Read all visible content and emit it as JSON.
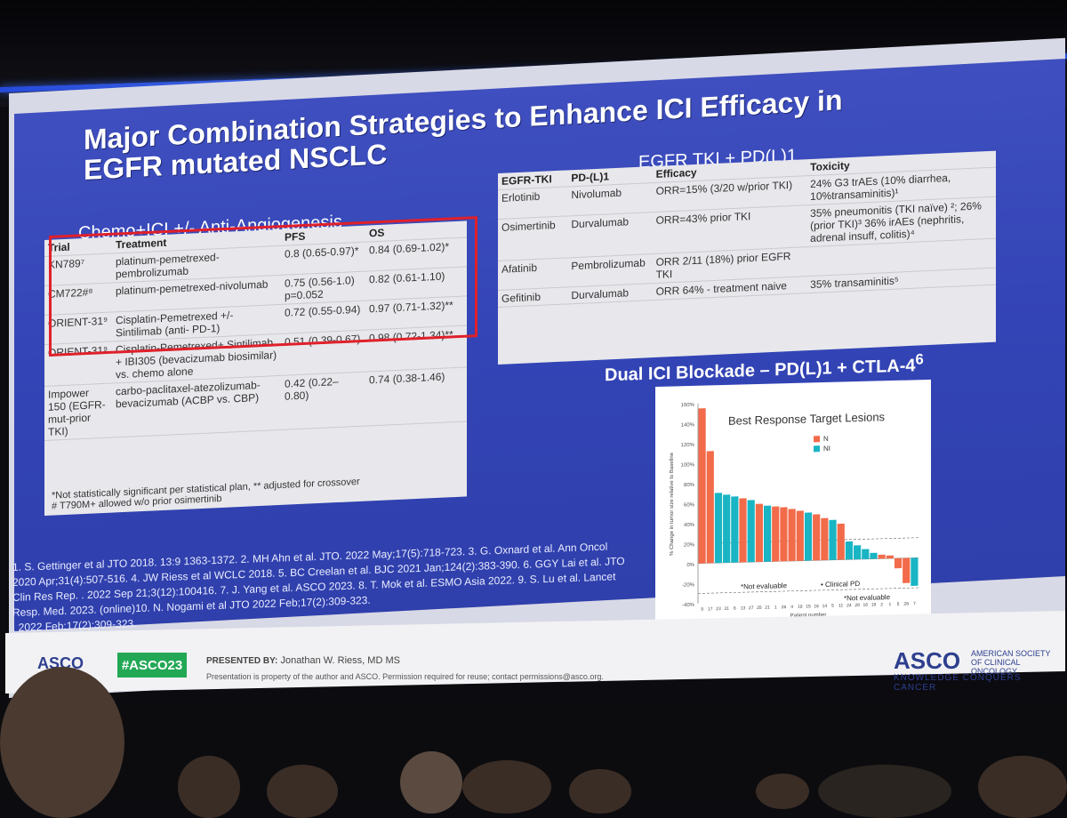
{
  "slide": {
    "title_line1": "Major Combination Strategies to Enhance ICI Efficacy in",
    "title_line2": "EGFR mutated NSCLC",
    "left_subtitle": "Chemo+ICI +/- Anti-Angiogenesis",
    "right_subtitle": "EGFR TKI + PD(L)1",
    "dual_subtitle": "Dual ICI Blockade – PD(L)1 + CTLA-4",
    "dual_superscript": "6"
  },
  "left_table": {
    "headers": [
      "Trial",
      "Treatment",
      "PFS",
      "OS"
    ],
    "rows": [
      {
        "trial": "KN789⁷",
        "treatment": "platinum-pemetrexed-pembrolizumab",
        "pfs": "0.8 (0.65-0.97)*",
        "os": "0.84 (0.69-1.02)*"
      },
      {
        "trial": "CM722#⁸",
        "treatment": "platinum-pemetrexed-nivolumab",
        "pfs": "0.75 (0.56-1.0) p=0.052",
        "os": "0.82 (0.61-1.10)"
      },
      {
        "trial": "ORIENT-31⁹",
        "treatment": "Cisplatin-Pemetrexed +/- Sintilimab (anti- PD-1)",
        "pfs": "0.72 (0.55-0.94)",
        "os": "0.97 (0.71-1.32)**"
      },
      {
        "trial": "ORIENT-31⁹",
        "treatment": "Cisplatin-Pemetrexed+ Sintilimab + IBI305 (bevacizumab biosimilar) vs. chemo alone",
        "pfs": "0.51 (0.39-0.67)",
        "os": "0.98 (0.72-1.34)**"
      },
      {
        "trial": "Impower 150 (EGFR-mut-prior TKI)",
        "treatment": "carbo-paclitaxel-atezolizumab-bevacizumab (ACBP vs. CBP)",
        "pfs": "0.42 (0.22–0.80)",
        "os": "0.74 (0.38-1.46)"
      }
    ],
    "note1": "*Not statistically significant per statistical plan, ** adjusted for crossover",
    "note2": "# T790M+ allowed w/o prior osimertinib"
  },
  "right_table": {
    "headers": [
      "EGFR-TKI",
      "PD-(L)1",
      "Efficacy",
      "Toxicity"
    ],
    "rows": [
      {
        "tki": "Erlotinib",
        "pdl1": "Nivolumab",
        "efficacy": "ORR=15% (3/20 w/prior TKI)",
        "toxicity": "24% G3 trAEs (10% diarrhea, 10%transaminitis)¹"
      },
      {
        "tki": "Osimertinib",
        "pdl1": "Durvalumab",
        "efficacy": "ORR=43% prior TKI",
        "toxicity": "35% pneumonitis (TKI naïve) ²; 26% (prior TKI)³ 36% irAEs (nephritis, adrenal insuff, colitis)⁴"
      },
      {
        "tki": "Afatinib",
        "pdl1": "Pembrolizumab",
        "efficacy": "ORR 2/11 (18%) prior EGFR TKI",
        "toxicity": ""
      },
      {
        "tki": "Gefitinib",
        "pdl1": "Durvalumab",
        "efficacy": "ORR 64% - treatment naive",
        "toxicity": "35% transaminitis⁵"
      }
    ]
  },
  "chart_data": {
    "type": "bar",
    "title": "Best Response Target Lesions",
    "ylabel": "% Change in tumor size relative to Baseline",
    "xlabel": "Patient number",
    "ylim": [
      -40,
      160
    ],
    "yticks": [
      "160%",
      "140%",
      "120%",
      "100%",
      "80%",
      "60%",
      "40%",
      "20%",
      "0%",
      "-20%",
      "-40%"
    ],
    "categories": [
      "9",
      "17",
      "23",
      "31",
      "6",
      "13",
      "27",
      "25",
      "21",
      "1",
      "26",
      "4",
      "19",
      "15",
      "16",
      "14",
      "5",
      "11",
      "24",
      "29",
      "16",
      "19",
      "2",
      "1",
      "5",
      "28",
      "7"
    ],
    "values": [
      155,
      112,
      70,
      68,
      66,
      64,
      62,
      58,
      56,
      55,
      54,
      52,
      50,
      48,
      46,
      42,
      40,
      36,
      18,
      14,
      10,
      6,
      4,
      3,
      -10,
      -25,
      -28
    ],
    "arms": [
      "N",
      "N",
      "NI",
      "NI",
      "NI",
      "N",
      "NI",
      "N",
      "NI",
      "N",
      "N",
      "N",
      "N",
      "NI",
      "N",
      "N",
      "NI",
      "N",
      "NI",
      "NI",
      "NI",
      "NI",
      "N",
      "N",
      "N",
      "N",
      "NI"
    ],
    "legend": [
      {
        "name": "N",
        "color": "#f26b4a"
      },
      {
        "name": "NI",
        "color": "#19b5c4"
      }
    ],
    "annotations": [
      "*Not evaluable",
      "• Clinical PD",
      "*Not evaluable"
    ]
  },
  "references": [
    "1. S. Gettinger et al JTO 2018. 13:9 1363-1372. 2. MH Ahn et al. JTO. 2022 May;17(5):718-723. 3. G. Oxnard et al. Ann Oncol",
    "2020 Apr;31(4):507-516. 4. JW Riess et al WCLC 2018. 5. BC Creelan et al. BJC 2021 Jan;124(2):383-390. 6. GGY Lai et al. JTO",
    "Clin Res Rep. . 2022 Sep 21;3(12):100416. 7. J. Yang et al. ASCO 2023. 8. T. Mok et al. ESMO Asia 2022. 9. S. Lu et al. Lancet",
    "Resp. Med. 2023. (online)10. N. Nogami et al JTO 2022 Feb;17(2):309-323.",
    ". 2022 Feb;17(2):309-323."
  ],
  "footer": {
    "asco_left": "ASCO",
    "hashtag": "#ASCO23",
    "presented_by": "PRESENTED BY:",
    "presenter": "Jonathan W. Riess, MD MS",
    "property_note": "Presentation is property of the author and ASCO. Permission required for reuse; contact permissions@asco.org.",
    "asco_right": "ASCO",
    "asco_society": "AMERICAN SOCIETY OF CLINICAL ONCOLOGY",
    "tagline": "KNOWLEDGE CONQUERS CANCER"
  }
}
